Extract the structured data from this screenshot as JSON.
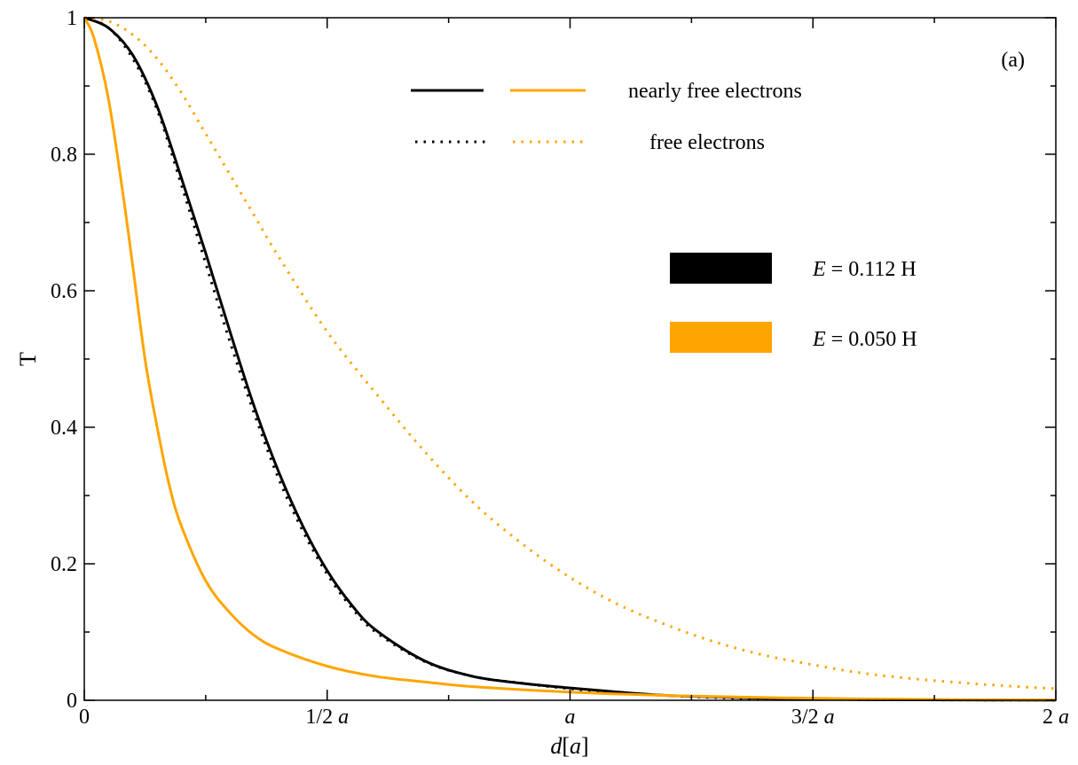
{
  "chart_data": {
    "type": "line",
    "xlabel_parts": {
      "italic_d": "d",
      "bracket_open": "[",
      "italic_a": "a",
      "bracket_close": "]"
    },
    "ylabel": "T",
    "panel_label": "(a)",
    "xlim": [
      0,
      2
    ],
    "ylim": [
      0,
      1
    ],
    "x_ticks": [
      {
        "value": 0,
        "label": "0",
        "italic": ""
      },
      {
        "value": 0.5,
        "label": "1/2 ",
        "italic": "a"
      },
      {
        "value": 1,
        "label": "",
        "italic": "a"
      },
      {
        "value": 1.5,
        "label": "3/2 ",
        "italic": "a"
      },
      {
        "value": 2,
        "label": "2 ",
        "italic": "a"
      }
    ],
    "y_ticks": [
      {
        "value": 0,
        "label": "0"
      },
      {
        "value": 0.2,
        "label": "0.2"
      },
      {
        "value": 0.4,
        "label": "0.4"
      },
      {
        "value": 0.6,
        "label": "0.6"
      },
      {
        "value": 0.8,
        "label": "0.8"
      },
      {
        "value": 1,
        "label": "1"
      }
    ],
    "x_minor_ticks": [
      0.25,
      0.75,
      1.25,
      1.75
    ],
    "y_minor_ticks": [
      0.1,
      0.3,
      0.5,
      0.7,
      0.9
    ],
    "colors": {
      "black": "#000000",
      "orange": "#FFA500"
    },
    "series": [
      {
        "color": "black",
        "style": "solid",
        "energy": "0.112 H",
        "kind": "nearly free electrons",
        "x": [
          0,
          0.05,
          0.1,
          0.15,
          0.2,
          0.25,
          0.3,
          0.35,
          0.4,
          0.45,
          0.5,
          0.55,
          0.6,
          0.7,
          0.8,
          0.9,
          1.0,
          1.1,
          1.2,
          1.3,
          1.4,
          1.5,
          1.6,
          1.8,
          2.0
        ],
        "y": [
          1.0,
          0.985,
          0.945,
          0.87,
          0.765,
          0.655,
          0.54,
          0.43,
          0.335,
          0.255,
          0.19,
          0.14,
          0.103,
          0.058,
          0.035,
          0.025,
          0.018,
          0.012,
          0.007,
          0.005,
          0.003,
          0.002,
          0.001,
          0.0005,
          0.0002
        ]
      },
      {
        "color": "black",
        "style": "dotted",
        "energy": "0.112 H",
        "kind": "free electrons",
        "x": [
          0,
          0.05,
          0.1,
          0.15,
          0.2,
          0.25,
          0.3,
          0.35,
          0.4,
          0.45,
          0.5,
          0.55,
          0.6,
          0.7,
          0.8,
          0.9,
          1.0,
          1.1,
          1.2,
          1.3,
          1.4,
          1.5,
          1.6,
          1.8,
          2.0
        ],
        "y": [
          1.0,
          0.985,
          0.94,
          0.865,
          0.755,
          0.64,
          0.525,
          0.42,
          0.325,
          0.248,
          0.185,
          0.136,
          0.1,
          0.057,
          0.035,
          0.025,
          0.017,
          0.011,
          0.007,
          0.004,
          0.002,
          0.0015,
          0.001,
          0.0005,
          0.0002
        ]
      },
      {
        "color": "orange",
        "style": "solid",
        "energy": "0.050 H",
        "kind": "nearly free electrons",
        "x": [
          0,
          0.02,
          0.05,
          0.08,
          0.1,
          0.125,
          0.15,
          0.175,
          0.2,
          0.25,
          0.3,
          0.35,
          0.4,
          0.5,
          0.6,
          0.7,
          0.8,
          1.0,
          1.2,
          1.4,
          1.6,
          1.8,
          2.0
        ],
        "y": [
          1.0,
          0.97,
          0.88,
          0.74,
          0.635,
          0.5,
          0.4,
          0.315,
          0.255,
          0.175,
          0.128,
          0.095,
          0.075,
          0.05,
          0.035,
          0.027,
          0.02,
          0.012,
          0.007,
          0.004,
          0.002,
          0.001,
          0.0005
        ]
      },
      {
        "color": "orange",
        "style": "dotted",
        "energy": "0.050 H",
        "kind": "free electrons",
        "x": [
          0,
          0.05,
          0.1,
          0.15,
          0.2,
          0.25,
          0.3,
          0.35,
          0.4,
          0.5,
          0.6,
          0.7,
          0.8,
          0.9,
          1.0,
          1.1,
          1.2,
          1.3,
          1.4,
          1.5,
          1.6,
          1.7,
          1.8,
          1.9,
          2.0
        ],
        "y": [
          1.0,
          0.995,
          0.975,
          0.94,
          0.89,
          0.83,
          0.77,
          0.71,
          0.65,
          0.54,
          0.45,
          0.365,
          0.29,
          0.23,
          0.18,
          0.14,
          0.11,
          0.085,
          0.066,
          0.052,
          0.04,
          0.032,
          0.026,
          0.021,
          0.017
        ]
      }
    ],
    "legend": {
      "nearly_free": "nearly free electrons",
      "free": "free electrons",
      "energies": [
        {
          "color": "black",
          "italic": "E",
          "text": " = 0.112 H"
        },
        {
          "color": "orange",
          "italic": "E",
          "text": " = 0.050 H"
        }
      ]
    }
  }
}
